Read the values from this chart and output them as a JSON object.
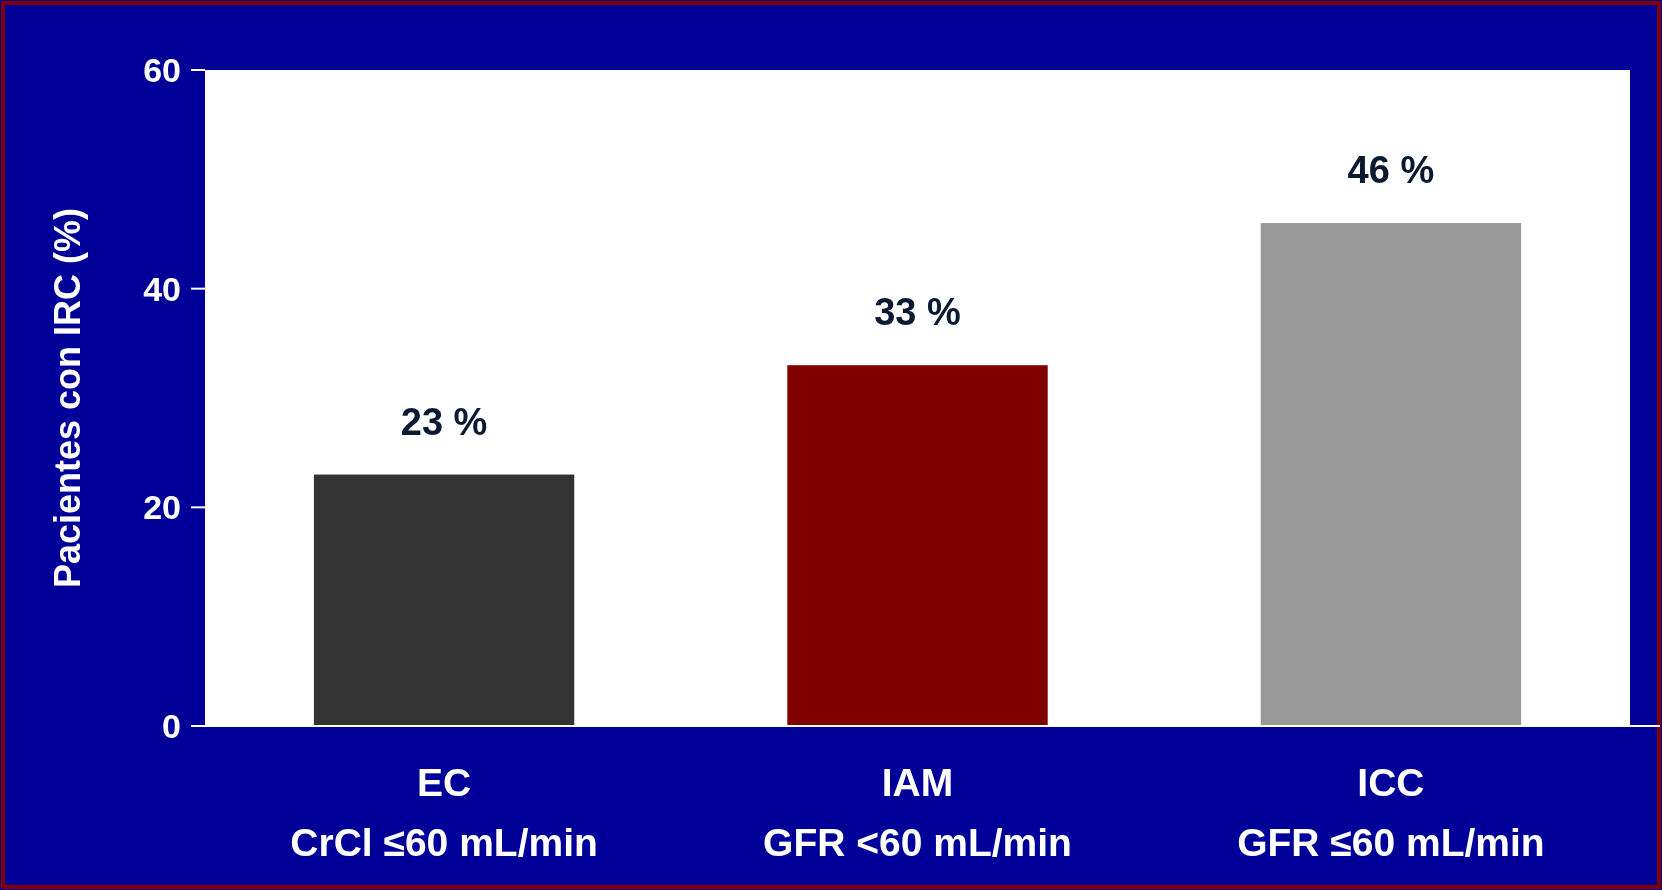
{
  "chart_data": {
    "type": "bar",
    "ylabel": "Pacientes con IRC (%)",
    "categories": [
      "EC\nCrCl ≤60 mL/min",
      "IAM\nGFR <60 mL/min",
      "ICC\nGFR ≤60 mL/min"
    ],
    "values": [
      23,
      33,
      46
    ],
    "colors": [
      "#333333",
      "#800000",
      "#999999"
    ],
    "value_labels": [
      "23 %",
      "33 %",
      "46 %"
    ],
    "ylim": [
      0,
      60
    ],
    "yticks": [
      0,
      20,
      40,
      60
    ]
  }
}
